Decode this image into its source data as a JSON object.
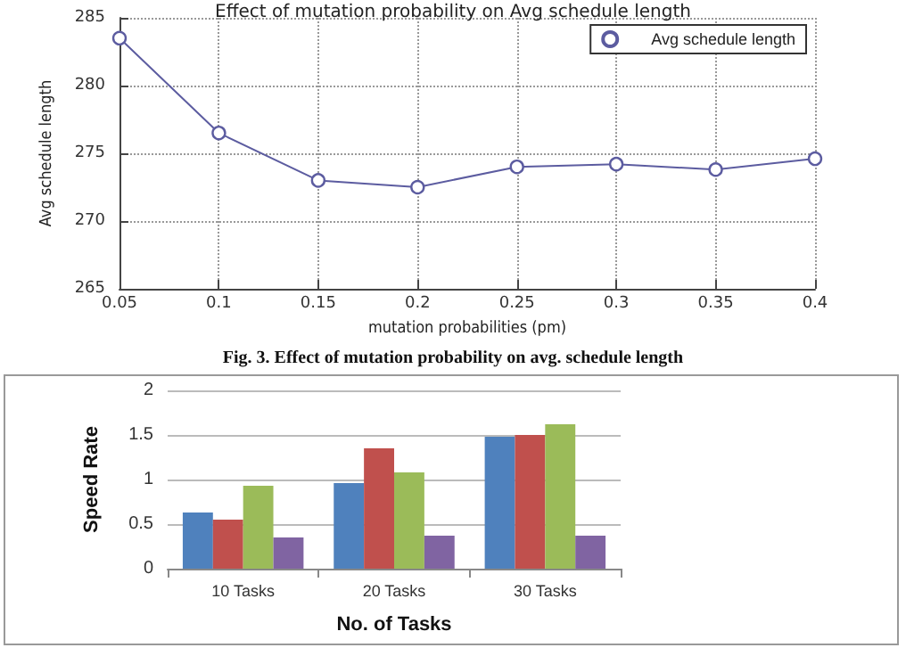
{
  "chart_data": [
    {
      "type": "line",
      "title": "Effect of mutation probability on Avg schedule length",
      "xlabel": "mutation probabilities (pm)",
      "ylabel": "Avg schedule length",
      "annotations": [
        "Fig. 3. Effect of mutation probability on avg. schedule length"
      ],
      "x": [
        0.05,
        0.1,
        0.15,
        0.2,
        0.25,
        0.3,
        0.35,
        0.4
      ],
      "series": [
        {
          "name": "Avg schedule length",
          "color": "#5c5ca0",
          "values": [
            283.5,
            276.5,
            273.0,
            272.5,
            274.0,
            274.2,
            273.8,
            274.6
          ]
        }
      ],
      "xlim": [
        0.05,
        0.4
      ],
      "xticks": [
        0.05,
        0.1,
        0.15,
        0.2,
        0.25,
        0.3,
        0.35,
        0.4
      ],
      "ylim": [
        265,
        285
      ],
      "yticks": [
        265,
        270,
        275,
        280,
        285
      ],
      "grid": true,
      "legend": "top right",
      "marker": "circle",
      "line_style": "solid"
    },
    {
      "type": "bar",
      "xlabel": "No. of Tasks",
      "ylabel": "Speed Rate",
      "categories": [
        "10 Tasks",
        "20 Tasks",
        "30 Tasks"
      ],
      "series": [
        {
          "color": "#4f81bd",
          "values": [
            0.63,
            0.96,
            1.48
          ]
        },
        {
          "color": "#c0504d",
          "values": [
            0.55,
            1.35,
            1.5
          ]
        },
        {
          "color": "#9bbb59",
          "values": [
            0.93,
            1.08,
            1.62
          ]
        },
        {
          "color": "#8064a2",
          "values": [
            0.35,
            0.37,
            0.37
          ]
        }
      ],
      "ylim": [
        0,
        2
      ],
      "yticks": [
        0,
        0.5,
        1,
        1.5,
        2
      ],
      "grid": "y",
      "legend": false
    }
  ]
}
